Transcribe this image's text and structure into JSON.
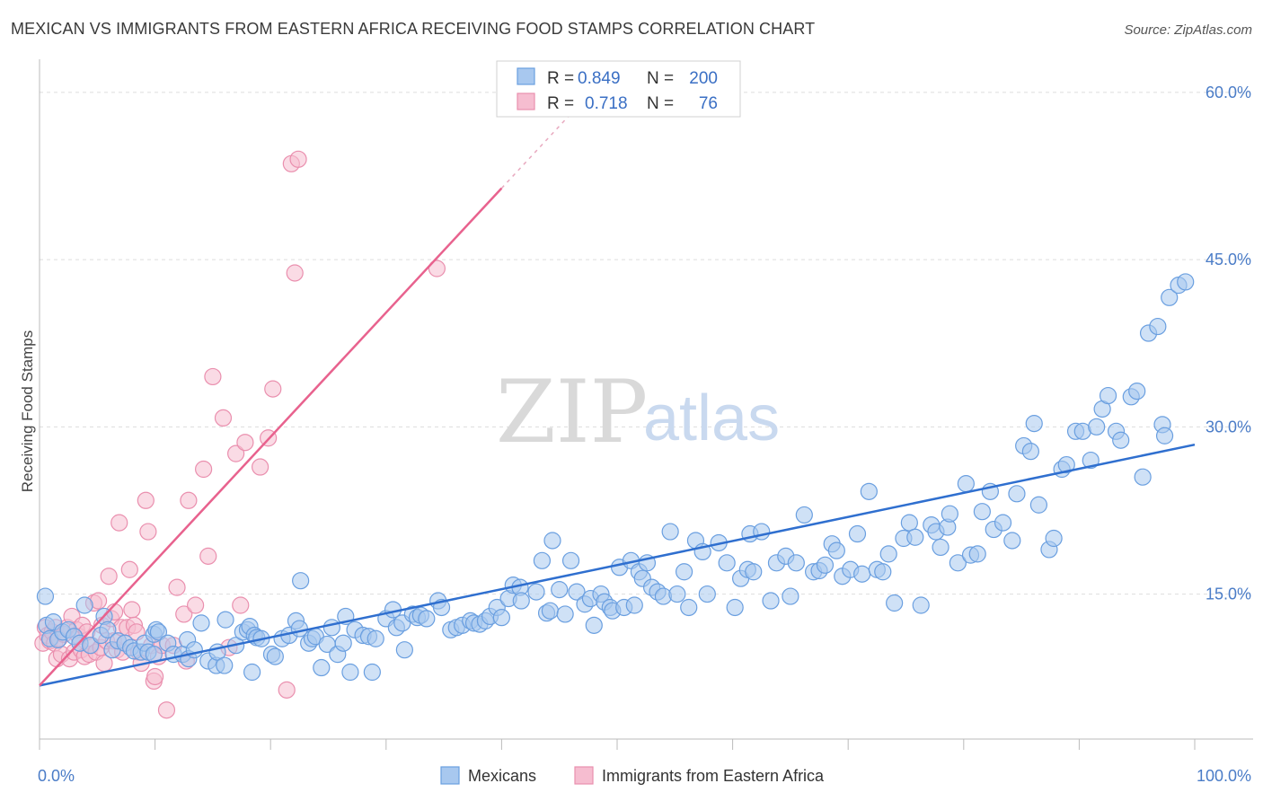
{
  "title": "MEXICAN VS IMMIGRANTS FROM EASTERN AFRICA RECEIVING FOOD STAMPS CORRELATION CHART",
  "source": "Source: ZipAtlas.com",
  "watermark": {
    "zip": "ZIP",
    "atlas": "atlas"
  },
  "colors": {
    "blue_fill": "#a8c8ef",
    "blue_stroke": "#6a9fe0",
    "blue_line": "#2f6fcf",
    "pink_fill": "#f6bdd0",
    "pink_stroke": "#ea8fae",
    "pink_line": "#e8628e",
    "tick_text": "#4a7cc7",
    "grid": "#dddddd"
  },
  "stats": {
    "r_label": "R =",
    "n_label": "N =",
    "mexicans": {
      "r": "0.849",
      "n": "200"
    },
    "eastern_africa": {
      "r": "0.718",
      "n": "76"
    }
  },
  "legend": {
    "mexicans": "Mexicans",
    "eastern_africa": "Immigrants from Eastern Africa"
  },
  "chart_data": {
    "type": "scatter",
    "title": "MEXICAN VS IMMIGRANTS FROM EASTERN AFRICA RECEIVING FOOD STAMPS CORRELATION CHART",
    "xlabel": "",
    "ylabel": "Receiving Food Stamps",
    "xlim": [
      0,
      100
    ],
    "ylim": [
      2,
      62
    ],
    "x_tick_labels": [
      "0.0%",
      "100.0%"
    ],
    "y_ticks": [
      15,
      30,
      45,
      60
    ],
    "y_tick_labels": [
      "15.0%",
      "30.0%",
      "45.0%",
      "60.0%"
    ],
    "grid": true,
    "legend_position": "bottom-center",
    "series": [
      {
        "name": "Mexicans",
        "r": 0.849,
        "n": 200,
        "trend": {
          "x": [
            0,
            100
          ],
          "y": [
            6.8,
            28.4
          ]
        },
        "points": [
          [
            0.5,
            14.8
          ],
          [
            0.6,
            12.2
          ],
          [
            0.9,
            11.0
          ],
          [
            1.2,
            12.5
          ],
          [
            1.6,
            10.9
          ],
          [
            2.0,
            11.6
          ],
          [
            2.5,
            11.8
          ],
          [
            3.0,
            11.2
          ],
          [
            3.5,
            10.6
          ],
          [
            3.9,
            14.0
          ],
          [
            4.4,
            10.4
          ],
          [
            5.3,
            11.3
          ],
          [
            5.6,
            13.0
          ],
          [
            5.9,
            11.8
          ],
          [
            6.3,
            10.0
          ],
          [
            6.8,
            10.8
          ],
          [
            7.4,
            10.6
          ],
          [
            7.9,
            10.2
          ],
          [
            8.2,
            9.9
          ],
          [
            8.8,
            9.8
          ],
          [
            9.1,
            10.6
          ],
          [
            9.4,
            9.8
          ],
          [
            9.9,
            9.6
          ],
          [
            9.9,
            11.4
          ],
          [
            10.1,
            11.8
          ],
          [
            10.3,
            11.6
          ],
          [
            11.1,
            10.6
          ],
          [
            11.6,
            9.6
          ],
          [
            12.4,
            9.6
          ],
          [
            12.8,
            10.9
          ],
          [
            12.9,
            9.2
          ],
          [
            13.4,
            10.0
          ],
          [
            14.0,
            12.4
          ],
          [
            14.6,
            9.0
          ],
          [
            15.3,
            8.6
          ],
          [
            15.4,
            9.8
          ],
          [
            16.0,
            8.6
          ],
          [
            16.1,
            12.7
          ],
          [
            17.0,
            10.4
          ],
          [
            17.6,
            11.6
          ],
          [
            18.0,
            11.8
          ],
          [
            18.2,
            12.1
          ],
          [
            18.4,
            8.0
          ],
          [
            18.6,
            11.3
          ],
          [
            18.8,
            11.1
          ],
          [
            19.2,
            11.0
          ],
          [
            20.1,
            9.6
          ],
          [
            20.4,
            9.4
          ],
          [
            21.0,
            11.0
          ],
          [
            21.6,
            11.3
          ],
          [
            22.2,
            12.6
          ],
          [
            22.5,
            11.9
          ],
          [
            22.6,
            16.2
          ],
          [
            23.3,
            10.6
          ],
          [
            23.6,
            11.0
          ],
          [
            23.9,
            11.2
          ],
          [
            24.4,
            8.4
          ],
          [
            24.9,
            10.5
          ],
          [
            25.3,
            12.0
          ],
          [
            25.8,
            9.6
          ],
          [
            26.3,
            10.6
          ],
          [
            26.5,
            13.0
          ],
          [
            26.9,
            8.0
          ],
          [
            27.3,
            11.8
          ],
          [
            28.0,
            11.3
          ],
          [
            28.5,
            11.2
          ],
          [
            28.8,
            8.0
          ],
          [
            29.1,
            11.0
          ],
          [
            30.0,
            12.8
          ],
          [
            30.6,
            13.6
          ],
          [
            30.9,
            12.0
          ],
          [
            31.4,
            12.4
          ],
          [
            31.6,
            10.0
          ],
          [
            32.3,
            13.2
          ],
          [
            32.7,
            12.9
          ],
          [
            33.0,
            13.1
          ],
          [
            33.5,
            12.8
          ],
          [
            34.5,
            14.4
          ],
          [
            34.8,
            13.8
          ],
          [
            35.6,
            11.8
          ],
          [
            36.1,
            12.0
          ],
          [
            36.6,
            12.2
          ],
          [
            37.3,
            12.6
          ],
          [
            37.6,
            12.4
          ],
          [
            38.1,
            12.3
          ],
          [
            38.6,
            12.6
          ],
          [
            39.0,
            13.0
          ],
          [
            39.6,
            13.8
          ],
          [
            40.0,
            12.9
          ],
          [
            40.6,
            14.6
          ],
          [
            41.0,
            15.8
          ],
          [
            41.6,
            15.6
          ],
          [
            41.7,
            14.4
          ],
          [
            43.0,
            15.2
          ],
          [
            43.5,
            18.0
          ],
          [
            43.9,
            13.3
          ],
          [
            44.2,
            13.5
          ],
          [
            44.4,
            19.8
          ],
          [
            45.0,
            15.4
          ],
          [
            45.5,
            13.2
          ],
          [
            46.0,
            18.0
          ],
          [
            46.5,
            15.2
          ],
          [
            47.2,
            14.1
          ],
          [
            47.7,
            14.6
          ],
          [
            48.0,
            12.2
          ],
          [
            48.6,
            15.0
          ],
          [
            48.9,
            14.3
          ],
          [
            49.4,
            13.8
          ],
          [
            49.6,
            13.5
          ],
          [
            50.2,
            17.4
          ],
          [
            50.6,
            13.8
          ],
          [
            51.2,
            18.0
          ],
          [
            51.5,
            14.0
          ],
          [
            51.9,
            17.0
          ],
          [
            52.2,
            16.4
          ],
          [
            52.6,
            17.8
          ],
          [
            53.0,
            15.6
          ],
          [
            53.5,
            15.2
          ],
          [
            54.0,
            14.8
          ],
          [
            54.6,
            20.6
          ],
          [
            55.2,
            15.0
          ],
          [
            55.8,
            17.0
          ],
          [
            56.2,
            13.8
          ],
          [
            56.8,
            19.8
          ],
          [
            57.4,
            18.8
          ],
          [
            57.8,
            15.0
          ],
          [
            58.8,
            19.6
          ],
          [
            59.5,
            17.8
          ],
          [
            60.2,
            13.8
          ],
          [
            60.7,
            16.4
          ],
          [
            61.3,
            17.2
          ],
          [
            61.5,
            20.4
          ],
          [
            61.8,
            17.0
          ],
          [
            62.5,
            20.6
          ],
          [
            63.3,
            14.4
          ],
          [
            63.8,
            17.8
          ],
          [
            64.6,
            18.4
          ],
          [
            65.0,
            14.8
          ],
          [
            65.5,
            17.8
          ],
          [
            66.2,
            22.1
          ],
          [
            67.0,
            17.0
          ],
          [
            67.5,
            17.1
          ],
          [
            68.0,
            17.6
          ],
          [
            68.6,
            19.5
          ],
          [
            69.0,
            18.9
          ],
          [
            69.5,
            16.6
          ],
          [
            70.2,
            17.2
          ],
          [
            70.8,
            20.4
          ],
          [
            71.2,
            16.8
          ],
          [
            71.8,
            24.2
          ],
          [
            72.5,
            17.2
          ],
          [
            73.0,
            17.0
          ],
          [
            73.5,
            18.6
          ],
          [
            74.0,
            14.2
          ],
          [
            74.8,
            20.0
          ],
          [
            75.3,
            21.4
          ],
          [
            75.8,
            20.1
          ],
          [
            76.3,
            14.0
          ],
          [
            77.2,
            21.2
          ],
          [
            77.6,
            20.6
          ],
          [
            78.0,
            19.2
          ],
          [
            78.6,
            21.0
          ],
          [
            78.8,
            22.2
          ],
          [
            79.5,
            17.8
          ],
          [
            80.2,
            24.9
          ],
          [
            80.6,
            18.5
          ],
          [
            81.2,
            18.6
          ],
          [
            81.6,
            22.4
          ],
          [
            82.3,
            24.2
          ],
          [
            82.6,
            20.8
          ],
          [
            83.4,
            21.4
          ],
          [
            84.2,
            19.8
          ],
          [
            84.6,
            24.0
          ],
          [
            85.2,
            28.3
          ],
          [
            85.8,
            27.8
          ],
          [
            86.1,
            30.3
          ],
          [
            86.5,
            23.0
          ],
          [
            87.4,
            19.0
          ],
          [
            87.8,
            20.0
          ],
          [
            88.5,
            26.2
          ],
          [
            88.9,
            26.6
          ],
          [
            89.7,
            29.6
          ],
          [
            90.3,
            29.6
          ],
          [
            91.0,
            27.0
          ],
          [
            91.5,
            30.0
          ],
          [
            92.0,
            31.6
          ],
          [
            92.5,
            32.8
          ],
          [
            93.2,
            29.6
          ],
          [
            93.6,
            28.8
          ],
          [
            94.5,
            32.7
          ],
          [
            95.0,
            33.2
          ],
          [
            95.5,
            25.5
          ],
          [
            96.0,
            38.4
          ],
          [
            96.8,
            39.0
          ],
          [
            97.2,
            30.2
          ],
          [
            97.4,
            29.2
          ],
          [
            97.8,
            41.6
          ],
          [
            98.6,
            42.7
          ],
          [
            99.2,
            43.0
          ]
        ]
      },
      {
        "name": "Immigrants from Eastern Africa",
        "r": 0.718,
        "n": 76,
        "trend": {
          "x": [
            0,
            40
          ],
          "y": [
            6.8,
            51.4
          ]
        },
        "trend_dashed": {
          "x": [
            40,
            47
          ],
          "y": [
            51.4,
            59.2
          ]
        },
        "points": [
          [
            0.3,
            10.6
          ],
          [
            0.5,
            12.0
          ],
          [
            0.7,
            11.3
          ],
          [
            0.9,
            10.8
          ],
          [
            1.1,
            11.6
          ],
          [
            1.3,
            10.6
          ],
          [
            1.4,
            12.0
          ],
          [
            1.5,
            9.2
          ],
          [
            1.7,
            11.0
          ],
          [
            1.9,
            9.6
          ],
          [
            2.1,
            11.4
          ],
          [
            2.4,
            12.0
          ],
          [
            2.6,
            9.2
          ],
          [
            2.8,
            13.0
          ],
          [
            3.0,
            9.8
          ],
          [
            3.2,
            11.8
          ],
          [
            3.4,
            11.2
          ],
          [
            3.6,
            10.0
          ],
          [
            3.7,
            12.2
          ],
          [
            3.9,
            9.4
          ],
          [
            4.1,
            11.6
          ],
          [
            4.3,
            9.6
          ],
          [
            4.5,
            10.4
          ],
          [
            4.7,
            14.2
          ],
          [
            4.9,
            9.8
          ],
          [
            5.1,
            14.4
          ],
          [
            5.3,
            10.2
          ],
          [
            5.4,
            12.2
          ],
          [
            5.6,
            8.8
          ],
          [
            5.8,
            10.8
          ],
          [
            6.0,
            16.6
          ],
          [
            6.2,
            12.8
          ],
          [
            6.4,
            10.8
          ],
          [
            6.5,
            13.4
          ],
          [
            6.7,
            10.0
          ],
          [
            6.9,
            21.4
          ],
          [
            7.1,
            12.0
          ],
          [
            7.2,
            9.8
          ],
          [
            7.4,
            10.6
          ],
          [
            7.6,
            12.0
          ],
          [
            7.8,
            17.2
          ],
          [
            8.0,
            13.6
          ],
          [
            8.2,
            12.2
          ],
          [
            8.4,
            11.6
          ],
          [
            8.6,
            9.8
          ],
          [
            8.8,
            8.8
          ],
          [
            9.2,
            23.4
          ],
          [
            9.4,
            20.6
          ],
          [
            9.7,
            10.4
          ],
          [
            9.9,
            7.2
          ],
          [
            10.0,
            7.6
          ],
          [
            10.3,
            9.4
          ],
          [
            10.6,
            10.4
          ],
          [
            11.0,
            4.6
          ],
          [
            11.6,
            10.4
          ],
          [
            11.9,
            15.6
          ],
          [
            12.5,
            13.2
          ],
          [
            12.7,
            9.0
          ],
          [
            12.9,
            23.4
          ],
          [
            13.5,
            14.0
          ],
          [
            14.2,
            26.2
          ],
          [
            14.6,
            18.4
          ],
          [
            15.0,
            34.5
          ],
          [
            15.9,
            30.8
          ],
          [
            16.4,
            10.2
          ],
          [
            17.0,
            27.6
          ],
          [
            17.4,
            14.0
          ],
          [
            17.8,
            28.6
          ],
          [
            19.1,
            26.4
          ],
          [
            19.8,
            29.0
          ],
          [
            20.2,
            33.4
          ],
          [
            21.4,
            6.4
          ],
          [
            21.8,
            53.6
          ],
          [
            22.1,
            43.8
          ],
          [
            22.4,
            54.0
          ],
          [
            34.4,
            44.2
          ]
        ]
      }
    ]
  }
}
